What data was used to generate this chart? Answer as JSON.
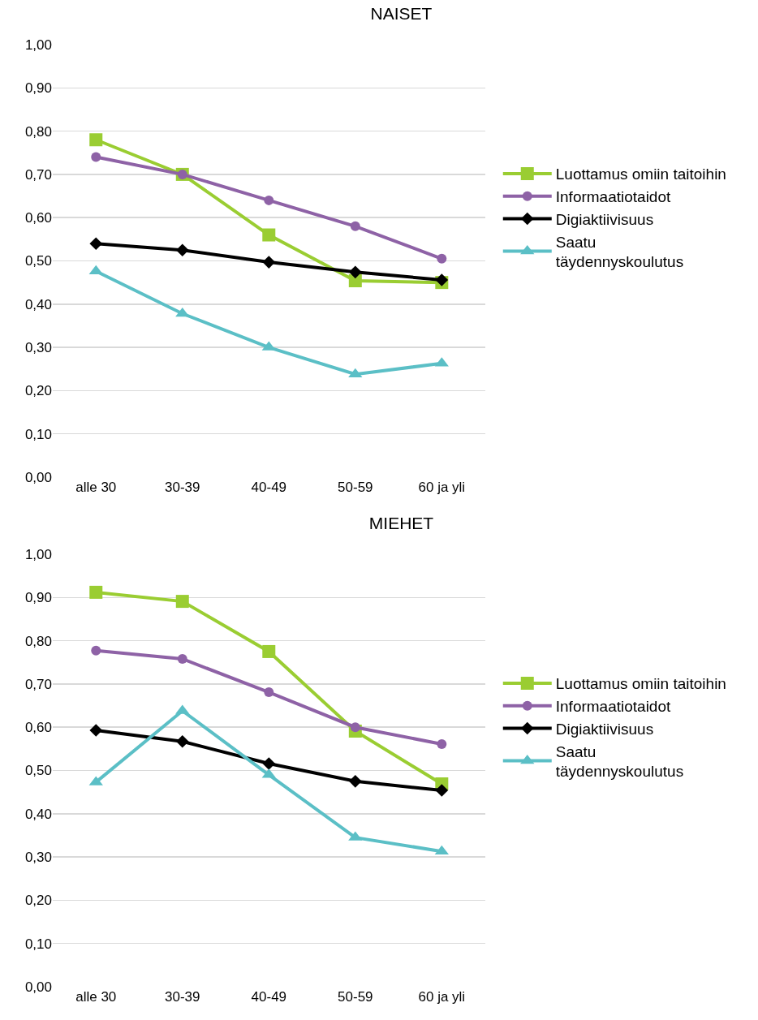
{
  "chart_data": [
    {
      "type": "line",
      "title": "NAISET",
      "categories": [
        "alle 30",
        "30-39",
        "40-49",
        "50-59",
        "60 ja yli"
      ],
      "ylim": [
        0,
        1
      ],
      "yticks": [
        {
          "value": 0,
          "label": "0,00"
        },
        {
          "value": 0.1,
          "label": "0,10"
        },
        {
          "value": 0.2,
          "label": "0,20"
        },
        {
          "value": 0.3,
          "label": "0,30"
        },
        {
          "value": 0.4,
          "label": "0,40"
        },
        {
          "value": 0.5,
          "label": "0,50"
        },
        {
          "value": 0.6,
          "label": "0,60"
        },
        {
          "value": 0.7,
          "label": "0,70"
        },
        {
          "value": 0.8,
          "label": "0,80"
        },
        {
          "value": 0.9,
          "label": "0,90"
        },
        {
          "value": 1,
          "label": "1,00"
        }
      ],
      "grid": "y",
      "legend": "right",
      "series": [
        {
          "name": "Luottamus omiin taitoihin",
          "color": "#9acd32",
          "marker": "square",
          "values": [
            0.78,
            0.7,
            0.56,
            0.454,
            0.45
          ]
        },
        {
          "name": "Informaatiotaidot",
          "color": "#8e62a6",
          "marker": "circle",
          "values": [
            0.74,
            0.7,
            0.64,
            0.58,
            0.505
          ]
        },
        {
          "name": "Digiaktiivisuus",
          "color": "#000000",
          "marker": "diamond",
          "values": [
            0.54,
            0.525,
            0.497,
            0.474,
            0.456
          ]
        },
        {
          "name": "Saatu täydennyskoulutus",
          "color": "#5bbfc6",
          "marker": "triangle",
          "values": [
            0.476,
            0.378,
            0.3,
            0.238,
            0.263
          ]
        }
      ]
    },
    {
      "type": "line",
      "title": "MIEHET",
      "categories": [
        "alle 30",
        "30-39",
        "40-49",
        "50-59",
        "60 ja yli"
      ],
      "ylim": [
        0,
        1
      ],
      "yticks": [
        {
          "value": 0,
          "label": "0,00"
        },
        {
          "value": 0.1,
          "label": "0,10"
        },
        {
          "value": 0.2,
          "label": "0,20"
        },
        {
          "value": 0.3,
          "label": "0,30"
        },
        {
          "value": 0.4,
          "label": "0,40"
        },
        {
          "value": 0.5,
          "label": "0,50"
        },
        {
          "value": 0.6,
          "label": "0,60"
        },
        {
          "value": 0.7,
          "label": "0,70"
        },
        {
          "value": 0.8,
          "label": "0,80"
        },
        {
          "value": 0.9,
          "label": "0,90"
        },
        {
          "value": 1,
          "label": "1,00"
        }
      ],
      "grid": "y",
      "legend": "right",
      "series": [
        {
          "name": "Luottamus omiin taitoihin",
          "color": "#9acd32",
          "marker": "square",
          "values": [
            0.912,
            0.891,
            0.775,
            0.591,
            0.469
          ]
        },
        {
          "name": "Informaatiotaidot",
          "color": "#8e62a6",
          "marker": "circle",
          "values": [
            0.777,
            0.758,
            0.681,
            0.6,
            0.561
          ]
        },
        {
          "name": "Digiaktiivisuus",
          "color": "#000000",
          "marker": "diamond",
          "values": [
            0.593,
            0.567,
            0.516,
            0.475,
            0.454
          ]
        },
        {
          "name": "Saatu täydennyskoulutus",
          "color": "#5bbfc6",
          "marker": "triangle",
          "values": [
            0.473,
            0.638,
            0.49,
            0.345,
            0.313
          ]
        }
      ]
    }
  ]
}
